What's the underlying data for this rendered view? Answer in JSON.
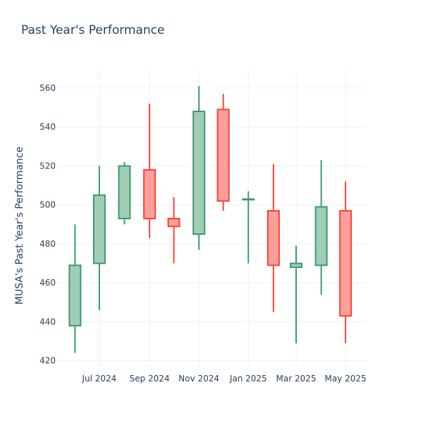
{
  "chart_data": {
    "type": "candlestick",
    "title": "Past Year's Performance",
    "xlabel": "",
    "ylabel": "MUSA's Past Year's Performance",
    "ylim": [
      417,
      569
    ],
    "yticks": [
      420,
      440,
      460,
      480,
      500,
      520,
      540,
      560
    ],
    "xlim": [
      "2024-05-09",
      "2025-05-27"
    ],
    "xticks": [
      {
        "date": "2024-07-01",
        "label": "Jul 2024"
      },
      {
        "date": "2024-09-01",
        "label": "Sep 2024"
      },
      {
        "date": "2024-11-01",
        "label": "Nov 2024"
      },
      {
        "date": "2025-01-01",
        "label": "Jan 2025"
      },
      {
        "date": "2025-03-01",
        "label": "Mar 2025"
      },
      {
        "date": "2025-05-01",
        "label": "May 2025"
      }
    ],
    "grid": true,
    "legend": "none",
    "colors": {
      "increasing_line": "#3d9970",
      "increasing_fill": "#a0cdb6",
      "decreasing_line": "#ff4136",
      "decreasing_fill": "#ff9f9a",
      "grid": "#ebf0f8",
      "text": "#2a3f5f"
    },
    "candles": [
      {
        "date": "2024-06-01",
        "open": 438,
        "high": 490,
        "low": 424,
        "close": 469
      },
      {
        "date": "2024-07-01",
        "open": 470,
        "high": 520,
        "low": 446,
        "close": 505
      },
      {
        "date": "2024-08-01",
        "open": 493,
        "high": 522,
        "low": 490,
        "close": 520
      },
      {
        "date": "2024-09-01",
        "open": 518,
        "high": 552,
        "low": 483,
        "close": 493
      },
      {
        "date": "2024-10-01",
        "open": 493,
        "high": 504,
        "low": 470,
        "close": 489
      },
      {
        "date": "2024-11-01",
        "open": 485,
        "high": 561,
        "low": 477,
        "close": 548
      },
      {
        "date": "2024-12-01",
        "open": 549,
        "high": 557,
        "low": 497,
        "close": 502
      },
      {
        "date": "2025-01-01",
        "open": 503,
        "high": 507,
        "low": 470,
        "close": 503
      },
      {
        "date": "2025-02-01",
        "open": 497,
        "high": 521,
        "low": 445,
        "close": 469
      },
      {
        "date": "2025-03-01",
        "open": 468,
        "high": 479,
        "low": 429,
        "close": 470
      },
      {
        "date": "2025-04-01",
        "open": 469,
        "high": 523,
        "low": 454,
        "close": 499
      },
      {
        "date": "2025-05-01",
        "open": 497,
        "high": 512,
        "low": 429,
        "close": 443
      }
    ]
  }
}
